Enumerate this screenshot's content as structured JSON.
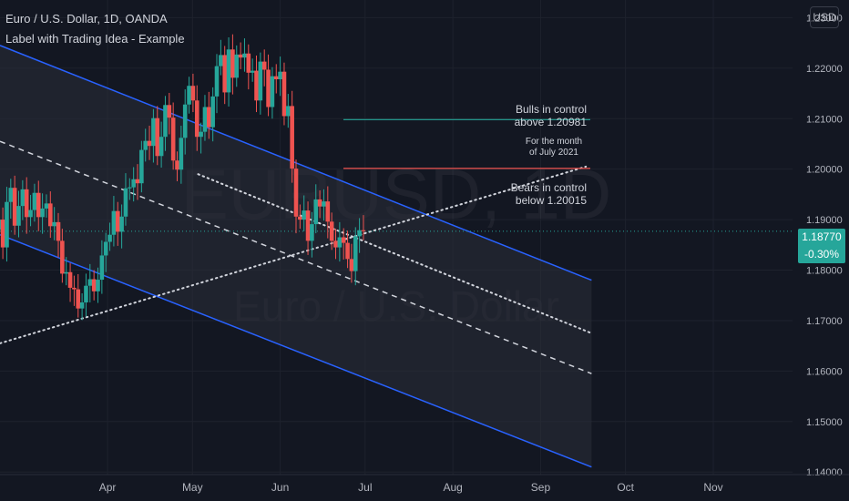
{
  "header": {
    "symbol_line": "Euro / U.S. Dollar, 1D, OANDA",
    "idea_label": "Label with Trading Idea - Example"
  },
  "currency_button": "USD",
  "watermark": {
    "ticker": "EURUSD, 1D",
    "name": "Euro / U.S. Dollar"
  },
  "last_price": {
    "value": "1.18770",
    "change": "-0.30%"
  },
  "colors": {
    "background": "#131722",
    "up": "#26a69a",
    "down": "#ef5350",
    "channel": "#2962ff",
    "bull_line": "#26a69a",
    "bear_line": "#ef5350",
    "text": "#d1d4dc",
    "axis_text": "#b2b5be"
  },
  "annotations": {
    "bulls": [
      "Bulls in control",
      "above  1.20981"
    ],
    "month": [
      "For the month",
      "of July 2021"
    ],
    "bears": [
      "Bears in control",
      "below  1.20015"
    ]
  },
  "chart_data": {
    "type": "candlestick",
    "title": "Euro / U.S. Dollar, 1D, OANDA",
    "x_ticks": [
      "Apr",
      "May",
      "Jun",
      "Jul",
      "Aug",
      "Sep",
      "Oct",
      "Nov"
    ],
    "x_tick_dates": [
      "2021-04-01",
      "2021-05-01",
      "2021-06-01",
      "2021-07-01",
      "2021-08-01",
      "2021-09-01",
      "2021-10-01",
      "2021-11-01"
    ],
    "y_ticks": [
      1.14,
      1.15,
      1.16,
      1.17,
      1.18,
      1.19,
      1.2,
      1.21,
      1.22,
      1.23
    ],
    "y_tick_labels": [
      "1.14000",
      "1.15000",
      "1.16000",
      "1.17000",
      "1.18000",
      "1.19000",
      "1.20000",
      "1.21000",
      "1.22000",
      "1.23000"
    ],
    "ylim": [
      1.1395,
      1.2335
    ],
    "xlim": [
      "2021-02-22",
      "2021-11-29"
    ],
    "grid": true,
    "candle_closes": [
      1.19,
      1.1845,
      1.1935,
      1.1963,
      1.1888,
      1.1927,
      1.196,
      1.1905,
      1.1919,
      1.1953,
      1.1905,
      1.1922,
      1.1932,
      1.1887,
      1.1895,
      1.1858,
      1.1793,
      1.1796,
      1.1765,
      1.1762,
      1.1724,
      1.1736,
      1.1769,
      1.1782,
      1.1758,
      1.1781,
      1.1829,
      1.1856,
      1.187,
      1.1917,
      1.1876,
      1.1906,
      1.1962,
      1.1964,
      1.198,
      1.1972,
      1.2038,
      1.2056,
      1.2046,
      1.2101,
      1.2026,
      1.2064,
      1.2127,
      1.2102,
      1.2017,
      1.1999,
      1.2062,
      1.2128,
      1.2165,
      1.2136,
      1.2064,
      1.2074,
      1.2123,
      1.2083,
      1.2144,
      1.2204,
      1.2226,
      1.2152,
      1.2237,
      1.2181,
      1.2227,
      1.2221,
      1.2229,
      1.2191,
      1.2195,
      1.2136,
      1.2213,
      1.2197,
      1.2123,
      1.2184,
      1.2178,
      1.2193,
      1.2105,
      1.2125,
      1.2001,
      1.1906,
      1.19,
      1.1918,
      1.1858,
      1.1891,
      1.194,
      1.1926,
      1.1936,
      1.1896,
      1.1858,
      1.1845,
      1.1865,
      1.1854,
      1.1822,
      1.1798,
      1.1867,
      1.1879,
      1.1877
    ],
    "candle_start": "2021-02-22",
    "channel": {
      "upper": [
        [
          "2021-02-22",
          1.2245
        ],
        [
          "2021-09-19",
          1.178
        ]
      ],
      "middle": [
        [
          "2021-02-22",
          1.2055
        ],
        [
          "2021-09-19",
          1.1595
        ]
      ],
      "lower": [
        [
          "2021-02-22",
          1.187
        ],
        [
          "2021-09-19",
          1.141
        ]
      ]
    },
    "trendlines": {
      "rising_dotted": [
        [
          "2021-02-22",
          1.1655
        ],
        [
          "2021-09-17",
          1.2005
        ]
      ],
      "falling_dotted": [
        [
          "2021-05-03",
          1.199
        ],
        [
          "2021-09-19",
          1.1675
        ]
      ]
    },
    "levels": {
      "bulls_above": 1.20981,
      "bears_below": 1.20015,
      "last": 1.1877
    }
  }
}
